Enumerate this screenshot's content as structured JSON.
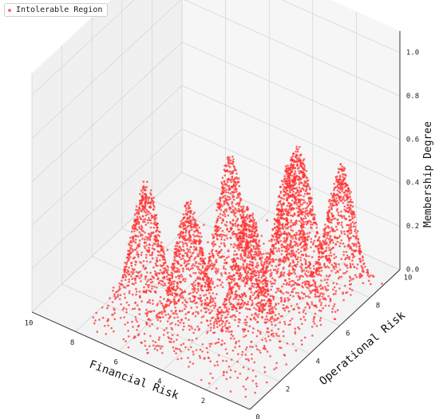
{
  "chart_data": {
    "type": "scatter",
    "title": "",
    "xlabel": "Financial Risk",
    "ylabel": "Operational Risk",
    "zlabel": "Membership Degree",
    "xlim": [
      0,
      10
    ],
    "ylim": [
      0,
      10
    ],
    "zlim": [
      0,
      1
    ],
    "x_ticks": [
      "2",
      "4",
      "6",
      "8",
      "10"
    ],
    "y_ticks": [
      "0",
      "2",
      "4",
      "6",
      "8",
      "10"
    ],
    "z_ticks": [
      "0.0",
      "0.2",
      "0.4",
      "0.6",
      "0.8",
      "1.0"
    ],
    "grid": true,
    "legend_position": "top-left",
    "series": [
      {
        "name": "Intolerable Region",
        "color": "#ff3333",
        "marker": "x",
        "peaks": [
          {
            "x": 6.5,
            "y": 2.5,
            "z": 0.55
          },
          {
            "x": 4.5,
            "y": 2.5,
            "z": 0.55
          },
          {
            "x": 4.0,
            "y": 4.5,
            "z": 0.65
          },
          {
            "x": 2.5,
            "y": 3.5,
            "z": 0.55
          },
          {
            "x": 2.0,
            "y": 5.5,
            "z": 0.65
          },
          {
            "x": 3.0,
            "y": 7.5,
            "z": 0.55
          },
          {
            "x": 1.0,
            "y": 7.5,
            "z": 0.55
          }
        ]
      }
    ]
  }
}
